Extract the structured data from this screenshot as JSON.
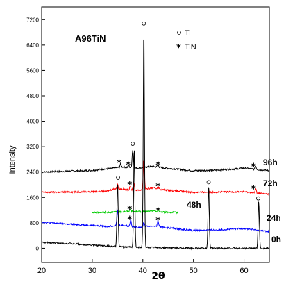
{
  "chart_data": {
    "type": "line",
    "title": "A96TiN",
    "xlabel": "2θ",
    "ylabel": "Intensity",
    "xlim": [
      20,
      65
    ],
    "ylim": [
      -450,
      7600
    ],
    "xticks": [
      20,
      30,
      40,
      50,
      60
    ],
    "yticks": [
      0,
      800,
      1600,
      2400,
      3200,
      4000,
      4800,
      5600,
      6400,
      7200
    ],
    "grid": false,
    "legend": {
      "position": "top-right",
      "entries": [
        {
          "symbol": "circle",
          "label": "Ti"
        },
        {
          "symbol": "star",
          "label": "TiN"
        }
      ]
    },
    "series": [
      {
        "name": "96h",
        "color": "#000000",
        "x_range": [
          20,
          65
        ],
        "baseline": [
          [
            20,
            2400
          ],
          [
            30,
            2450
          ],
          [
            34,
            2520
          ],
          [
            36,
            2560
          ],
          [
            39,
            2520
          ],
          [
            42,
            2580
          ],
          [
            44,
            2530
          ],
          [
            50,
            2440
          ],
          [
            55,
            2460
          ],
          [
            60,
            2520
          ],
          [
            65,
            2440
          ]
        ],
        "peaks": [
          [
            35.6,
            2650
          ],
          [
            37.2,
            2600
          ],
          [
            38.0,
            3100
          ],
          [
            43.0,
            2650
          ],
          [
            62.3,
            2580
          ]
        ]
      },
      {
        "name": "72h",
        "color": "#ff0000",
        "x_range": [
          20,
          65
        ],
        "baseline": [
          [
            20,
            1760
          ],
          [
            30,
            1780
          ],
          [
            33,
            1800
          ],
          [
            34.5,
            1880
          ],
          [
            36,
            1860
          ],
          [
            39,
            1820
          ],
          [
            42,
            1900
          ],
          [
            44,
            1840
          ],
          [
            50,
            1760
          ],
          [
            60,
            1780
          ],
          [
            65,
            1700
          ]
        ],
        "peaks": [
          [
            35.0,
            2000
          ],
          [
            37.5,
            1950
          ],
          [
            38.2,
            2080
          ],
          [
            40.2,
            2800
          ],
          [
            43.0,
            1950
          ],
          [
            62.3,
            1870
          ]
        ]
      },
      {
        "name": "48h",
        "color": "#00cc00",
        "x_range": [
          30,
          47
        ],
        "baseline": [
          [
            30,
            1120
          ],
          [
            33,
            1130
          ],
          [
            35,
            1140
          ],
          [
            37,
            1160
          ],
          [
            40,
            1150
          ],
          [
            42,
            1170
          ],
          [
            44,
            1140
          ],
          [
            47,
            1120
          ]
        ],
        "peaks": [
          [
            37.5,
            1230
          ],
          [
            43.0,
            1200
          ]
        ]
      },
      {
        "name": "24h",
        "color": "#0000ff",
        "x_range": [
          20,
          65
        ],
        "baseline": [
          [
            20,
            820
          ],
          [
            25,
            760
          ],
          [
            30,
            720
          ],
          [
            33,
            680
          ],
          [
            34.5,
            720
          ],
          [
            36,
            720
          ],
          [
            39,
            660
          ],
          [
            42,
            700
          ],
          [
            44,
            660
          ],
          [
            50,
            560
          ],
          [
            55,
            580
          ],
          [
            60,
            620
          ],
          [
            65,
            520
          ]
        ],
        "peaks": [
          [
            35.0,
            1200
          ],
          [
            37.6,
            900
          ],
          [
            40.2,
            820
          ],
          [
            43.0,
            880
          ]
        ]
      },
      {
        "name": "0h",
        "color": "#000000",
        "x_range": [
          20,
          65
        ],
        "baseline": [
          [
            20,
            180
          ],
          [
            25,
            150
          ],
          [
            30,
            100
          ],
          [
            34,
            60
          ],
          [
            36,
            40
          ],
          [
            39,
            30
          ],
          [
            42,
            20
          ],
          [
            45,
            10
          ],
          [
            50,
            0
          ],
          [
            55,
            0
          ],
          [
            60,
            0
          ],
          [
            65,
            0
          ]
        ],
        "peaks": [
          [
            35.0,
            2100
          ],
          [
            38.3,
            3100
          ],
          [
            40.2,
            6900
          ],
          [
            53.0,
            2000
          ],
          [
            62.9,
            1500
          ]
        ]
      }
    ],
    "annotations": [
      {
        "symbol": "star",
        "x": 35.3,
        "y": 2750
      },
      {
        "symbol": "star",
        "x": 37.1,
        "y": 2700
      },
      {
        "symbol": "star",
        "x": 43.0,
        "y": 2700
      },
      {
        "symbol": "star",
        "x": 61.9,
        "y": 2650
      },
      {
        "symbol": "star",
        "x": 37.4,
        "y": 2080
      },
      {
        "symbol": "star",
        "x": 43.0,
        "y": 2020
      },
      {
        "symbol": "star",
        "x": 61.9,
        "y": 1950
      },
      {
        "symbol": "star",
        "x": 37.4,
        "y": 1300
      },
      {
        "symbol": "star",
        "x": 43.0,
        "y": 1260
      },
      {
        "symbol": "star",
        "x": 37.4,
        "y": 980
      },
      {
        "symbol": "star",
        "x": 43.0,
        "y": 950
      },
      {
        "symbol": "circle",
        "x": 35.1,
        "y": 2220
      },
      {
        "symbol": "circle",
        "x": 38.0,
        "y": 3290
      },
      {
        "symbol": "circle",
        "x": 40.2,
        "y": 7080
      },
      {
        "symbol": "circle",
        "x": 53.0,
        "y": 2080
      },
      {
        "symbol": "circle",
        "x": 62.8,
        "y": 1570
      }
    ]
  }
}
